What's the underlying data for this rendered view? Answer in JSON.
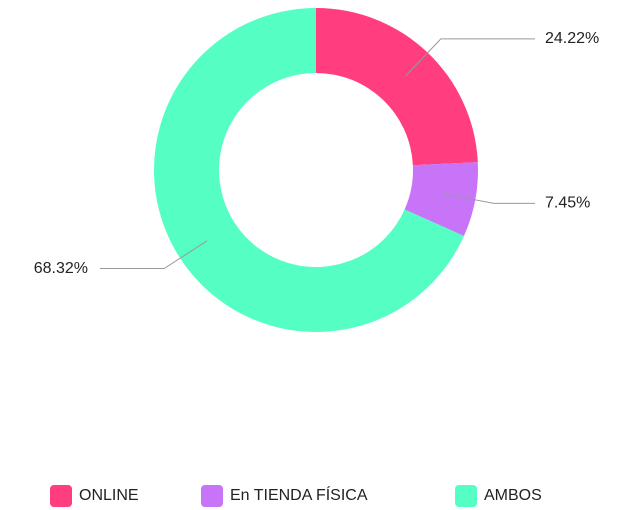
{
  "chart_data": {
    "type": "donut",
    "categories": [
      "ONLINE",
      "En TIENDA FÍSICA",
      "AMBOS"
    ],
    "values": [
      24.22,
      7.45,
      68.32
    ],
    "value_labels": [
      "24.22%",
      "7.45%",
      "68.32%"
    ],
    "colors": [
      "#ff3d7f",
      "#c774f8",
      "#55ffc4"
    ],
    "legend": "bottom"
  }
}
